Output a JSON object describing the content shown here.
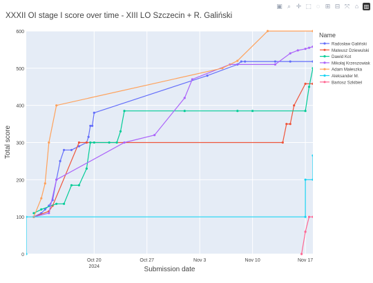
{
  "modebar": {
    "icons": [
      "camera-icon",
      "zoom-icon",
      "pan-icon",
      "box-select-icon",
      "lasso-icon",
      "zoom-in-icon",
      "zoom-out-icon",
      "autoscale-icon",
      "reset-axes-icon",
      "plotly-logo-icon"
    ],
    "glyphs": [
      "▣",
      "⌕",
      "✛",
      "⬚",
      "◌",
      "⊞",
      "⊟",
      "⤧",
      "⌂",
      "▥"
    ]
  },
  "chart_data": {
    "type": "line",
    "title": "XXXII OI stage I score over time - XIII LO Szczecin + R. Galiński",
    "xlabel": "Submission date",
    "ylabel": "Total score",
    "xlim": [
      "2024-10-11",
      "2024-11-18"
    ],
    "ylim": [
      0,
      600
    ],
    "y_ticks": [
      0,
      100,
      200,
      300,
      400,
      500,
      600
    ],
    "x_ticks": [
      {
        "date": "2024-10-20",
        "label": "Oct 20",
        "sublabel": "2024"
      },
      {
        "date": "2024-10-27",
        "label": "Oct 27",
        "sublabel": ""
      },
      {
        "date": "2024-11-03",
        "label": "Nov 3",
        "sublabel": ""
      },
      {
        "date": "2024-11-10",
        "label": "Nov 10",
        "sublabel": ""
      },
      {
        "date": "2024-11-17",
        "label": "Nov 17",
        "sublabel": ""
      }
    ],
    "grid": true,
    "legend_title": "Name",
    "legend_position": "right",
    "plot_background": "#E5ECF6",
    "series": [
      {
        "name": "Radosław Galiński",
        "color": "#636efa",
        "points": [
          [
            "2024-10-12",
            100
          ],
          [
            "2024-10-13",
            110
          ],
          [
            "2024-10-13 12:00",
            120
          ],
          [
            "2024-10-14",
            130
          ],
          [
            "2024-10-14 12:00",
            145
          ],
          [
            "2024-10-15",
            200
          ],
          [
            "2024-10-15 12:00",
            250
          ],
          [
            "2024-10-16",
            280
          ],
          [
            "2024-10-17",
            280
          ],
          [
            "2024-10-18",
            290
          ],
          [
            "2024-10-19",
            300
          ],
          [
            "2024-10-19 06:00",
            315
          ],
          [
            "2024-10-19 12:00",
            345
          ],
          [
            "2024-10-19 18:00",
            345
          ],
          [
            "2024-10-20",
            380
          ],
          [
            "2024-11-04",
            480
          ],
          [
            "2024-11-08",
            510
          ],
          [
            "2024-11-08 12:00",
            518
          ],
          [
            "2024-11-09",
            518
          ],
          [
            "2024-11-13",
            518
          ],
          [
            "2024-11-15",
            518
          ],
          [
            "2024-11-18",
            518
          ]
        ]
      },
      {
        "name": "Mateusz Dziewulski",
        "color": "#ef553b",
        "points": [
          [
            "2024-10-12",
            100
          ],
          [
            "2024-10-14",
            115
          ],
          [
            "2024-10-14 12:00",
            130
          ],
          [
            "2024-10-18",
            300
          ],
          [
            "2024-10-19",
            300
          ],
          [
            "2024-11-14",
            300
          ],
          [
            "2024-11-14 12:00",
            350
          ],
          [
            "2024-11-15",
            350
          ],
          [
            "2024-11-15 12:00",
            400
          ],
          [
            "2024-11-17",
            458
          ],
          [
            "2024-11-18",
            458
          ]
        ]
      },
      {
        "name": "Dawid Kot",
        "color": "#00cc96",
        "points": [
          [
            "2024-10-12",
            110
          ],
          [
            "2024-10-13",
            120
          ],
          [
            "2024-10-15",
            135
          ],
          [
            "2024-10-16",
            135
          ],
          [
            "2024-10-17",
            185
          ],
          [
            "2024-10-18",
            185
          ],
          [
            "2024-10-19",
            230
          ],
          [
            "2024-10-19 12:00",
            300
          ],
          [
            "2024-10-20",
            300
          ],
          [
            "2024-10-22",
            300
          ],
          [
            "2024-10-23",
            300
          ],
          [
            "2024-10-23 12:00",
            330
          ],
          [
            "2024-10-24",
            385
          ],
          [
            "2024-11-01",
            385
          ],
          [
            "2024-11-08",
            385
          ],
          [
            "2024-11-10",
            385
          ],
          [
            "2024-11-17",
            385
          ],
          [
            "2024-11-17 12:00",
            450
          ],
          [
            "2024-11-18",
            500
          ]
        ]
      },
      {
        "name": "Mikołaj Krzeszowiak",
        "color": "#ab63fa",
        "points": [
          [
            "2024-10-12",
            100
          ],
          [
            "2024-10-14",
            110
          ],
          [
            "2024-10-15",
            200
          ],
          [
            "2024-10-24",
            300
          ],
          [
            "2024-10-28",
            320
          ],
          [
            "2024-11-01",
            420
          ],
          [
            "2024-11-02",
            470
          ],
          [
            "2024-11-07",
            510
          ],
          [
            "2024-11-13",
            510
          ],
          [
            "2024-11-15",
            540
          ],
          [
            "2024-11-16",
            548
          ],
          [
            "2024-11-17",
            552
          ],
          [
            "2024-11-17 12:00",
            555
          ],
          [
            "2024-11-18",
            558
          ]
        ]
      },
      {
        "name": "Adam Małeszka",
        "color": "#FFA15A",
        "points": [
          [
            "2024-10-12",
            100
          ],
          [
            "2024-10-13",
            150
          ],
          [
            "2024-10-13 12:00",
            190
          ],
          [
            "2024-10-14",
            300
          ],
          [
            "2024-10-15",
            400
          ],
          [
            "2024-11-06",
            500
          ],
          [
            "2024-11-08",
            520
          ],
          [
            "2024-11-12",
            600
          ],
          [
            "2024-11-18",
            600
          ]
        ]
      },
      {
        "name": "Aleksander M.",
        "color": "#19d3f3",
        "points": [
          [
            "2024-10-11",
            0
          ],
          [
            "2024-10-11",
            100
          ],
          [
            "2024-11-17",
            100
          ],
          [
            "2024-11-17",
            200
          ],
          [
            "2024-11-18",
            200
          ],
          [
            "2024-11-18",
            265
          ]
        ]
      },
      {
        "name": "Bartosz Szkibiel",
        "color": "#FF6692",
        "points": [
          [
            "2024-11-16 12:00",
            0
          ],
          [
            "2024-11-17",
            60
          ],
          [
            "2024-11-17 12:00",
            100
          ],
          [
            "2024-11-18",
            100
          ]
        ]
      }
    ]
  }
}
